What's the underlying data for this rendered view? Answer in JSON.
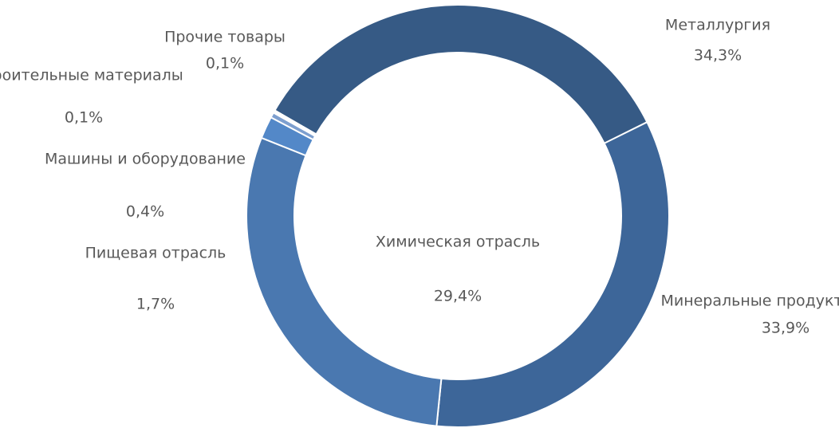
{
  "chart_data": {
    "type": "donut",
    "categories": [
      "Металлургия",
      "Минеральные продукты",
      "Химическая отрасль",
      "Пищевая отрасль",
      "Машины и оборудование",
      "Строительные материалы",
      "Прочие товары"
    ],
    "values": [
      34.3,
      33.9,
      29.4,
      1.7,
      0.4,
      0.1,
      0.1
    ],
    "value_labels": [
      "34,3%",
      "33,9%",
      "29,4%",
      "1,7%",
      "0,4%",
      "0,1%",
      "0,1%"
    ],
    "colors": [
      "#365a85",
      "#3d6699",
      "#4a78b0",
      "#5388c8",
      "#7d9fcf",
      "#a6bde0",
      "#c9d6ec"
    ]
  }
}
